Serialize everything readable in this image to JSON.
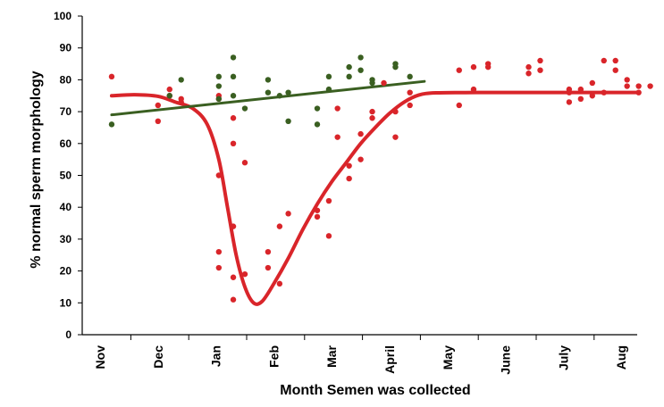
{
  "chart_data": {
    "type": "scatter",
    "title": "",
    "xlabel": "Month Semen was collected",
    "ylabel": "% normal sperm morphology",
    "ylim": [
      0,
      100
    ],
    "yticks": [
      0,
      10,
      20,
      30,
      40,
      50,
      60,
      70,
      80,
      90,
      100
    ],
    "categories": [
      "Nov",
      "Dec",
      "Jan",
      "Feb",
      "Mar",
      "April",
      "May",
      "June",
      "July",
      "Aug"
    ],
    "x_units": "months since start of Nov",
    "xlim": [
      -0.2,
      9.3
    ],
    "grid": false,
    "legend": "none",
    "series": [
      {
        "color": "#d9252a",
        "points": [
          [
            0.2,
            81
          ],
          [
            1.0,
            67
          ],
          [
            1.0,
            72
          ],
          [
            1.2,
            77
          ],
          [
            1.2,
            75
          ],
          [
            1.4,
            73
          ],
          [
            1.4,
            74
          ],
          [
            2.05,
            50
          ],
          [
            2.05,
            26
          ],
          [
            2.05,
            21
          ],
          [
            2.05,
            74
          ],
          [
            2.05,
            75
          ],
          [
            2.3,
            68
          ],
          [
            2.3,
            60
          ],
          [
            2.3,
            34
          ],
          [
            2.3,
            18
          ],
          [
            2.3,
            11
          ],
          [
            2.5,
            54
          ],
          [
            2.5,
            19
          ],
          [
            2.9,
            26
          ],
          [
            2.9,
            21
          ],
          [
            3.1,
            34
          ],
          [
            3.1,
            16
          ],
          [
            3.25,
            38
          ],
          [
            3.75,
            39
          ],
          [
            3.75,
            37
          ],
          [
            3.95,
            42
          ],
          [
            3.95,
            31
          ],
          [
            4.1,
            71
          ],
          [
            4.1,
            62
          ],
          [
            4.3,
            53
          ],
          [
            4.3,
            49
          ],
          [
            4.5,
            63
          ],
          [
            4.5,
            55
          ],
          [
            4.7,
            70
          ],
          [
            4.7,
            68
          ],
          [
            4.9,
            79
          ],
          [
            5.1,
            70
          ],
          [
            5.1,
            62
          ],
          [
            5.35,
            76
          ],
          [
            5.35,
            72
          ],
          [
            6.2,
            83
          ],
          [
            6.2,
            72
          ],
          [
            6.45,
            84
          ],
          [
            6.45,
            77
          ],
          [
            6.7,
            85
          ],
          [
            6.7,
            84
          ],
          [
            7.4,
            84
          ],
          [
            7.4,
            82
          ],
          [
            7.6,
            86
          ],
          [
            7.6,
            83
          ],
          [
            8.1,
            77
          ],
          [
            8.1,
            76
          ],
          [
            8.1,
            73
          ],
          [
            8.3,
            77
          ],
          [
            8.3,
            74
          ],
          [
            8.5,
            79
          ],
          [
            8.5,
            75
          ],
          [
            8.7,
            86
          ],
          [
            8.7,
            76
          ],
          [
            8.9,
            86
          ],
          [
            8.9,
            83
          ],
          [
            9.1,
            80
          ],
          [
            9.1,
            78
          ],
          [
            9.3,
            78
          ],
          [
            9.3,
            76
          ],
          [
            9.5,
            78
          ]
        ],
        "trend": [
          [
            0.2,
            75
          ],
          [
            0.6,
            75.3
          ],
          [
            1.0,
            74.8
          ],
          [
            1.3,
            73
          ],
          [
            1.6,
            71
          ],
          [
            1.85,
            66
          ],
          [
            2.05,
            55
          ],
          [
            2.2,
            40
          ],
          [
            2.35,
            25
          ],
          [
            2.5,
            15
          ],
          [
            2.65,
            10
          ],
          [
            2.8,
            10.5
          ],
          [
            3.0,
            16
          ],
          [
            3.25,
            24
          ],
          [
            3.5,
            33
          ],
          [
            3.75,
            41
          ],
          [
            4.0,
            48
          ],
          [
            4.25,
            54
          ],
          [
            4.5,
            60
          ],
          [
            4.75,
            65
          ],
          [
            5.0,
            69.5
          ],
          [
            5.25,
            73
          ],
          [
            5.5,
            75.2
          ],
          [
            5.8,
            75.9
          ],
          [
            6.5,
            76
          ],
          [
            7.5,
            76
          ],
          [
            8.5,
            76
          ],
          [
            9.3,
            76
          ]
        ]
      },
      {
        "color": "#3a5f21",
        "points": [
          [
            0.2,
            66
          ],
          [
            1.2,
            75
          ],
          [
            1.4,
            80
          ],
          [
            2.05,
            81
          ],
          [
            2.05,
            78
          ],
          [
            2.05,
            74
          ],
          [
            2.3,
            87
          ],
          [
            2.3,
            81
          ],
          [
            2.3,
            75
          ],
          [
            2.5,
            71
          ],
          [
            2.9,
            80
          ],
          [
            2.9,
            76
          ],
          [
            3.1,
            75
          ],
          [
            3.25,
            76
          ],
          [
            3.25,
            67
          ],
          [
            3.75,
            71
          ],
          [
            3.75,
            66
          ],
          [
            3.95,
            81
          ],
          [
            3.95,
            77
          ],
          [
            4.3,
            84
          ],
          [
            4.3,
            81
          ],
          [
            4.5,
            87
          ],
          [
            4.5,
            83
          ],
          [
            4.7,
            80
          ],
          [
            4.7,
            79
          ],
          [
            5.1,
            85
          ],
          [
            5.1,
            84
          ],
          [
            5.35,
            81
          ]
        ],
        "trend": [
          [
            0.2,
            69
          ],
          [
            5.6,
            79.5
          ]
        ]
      }
    ]
  }
}
